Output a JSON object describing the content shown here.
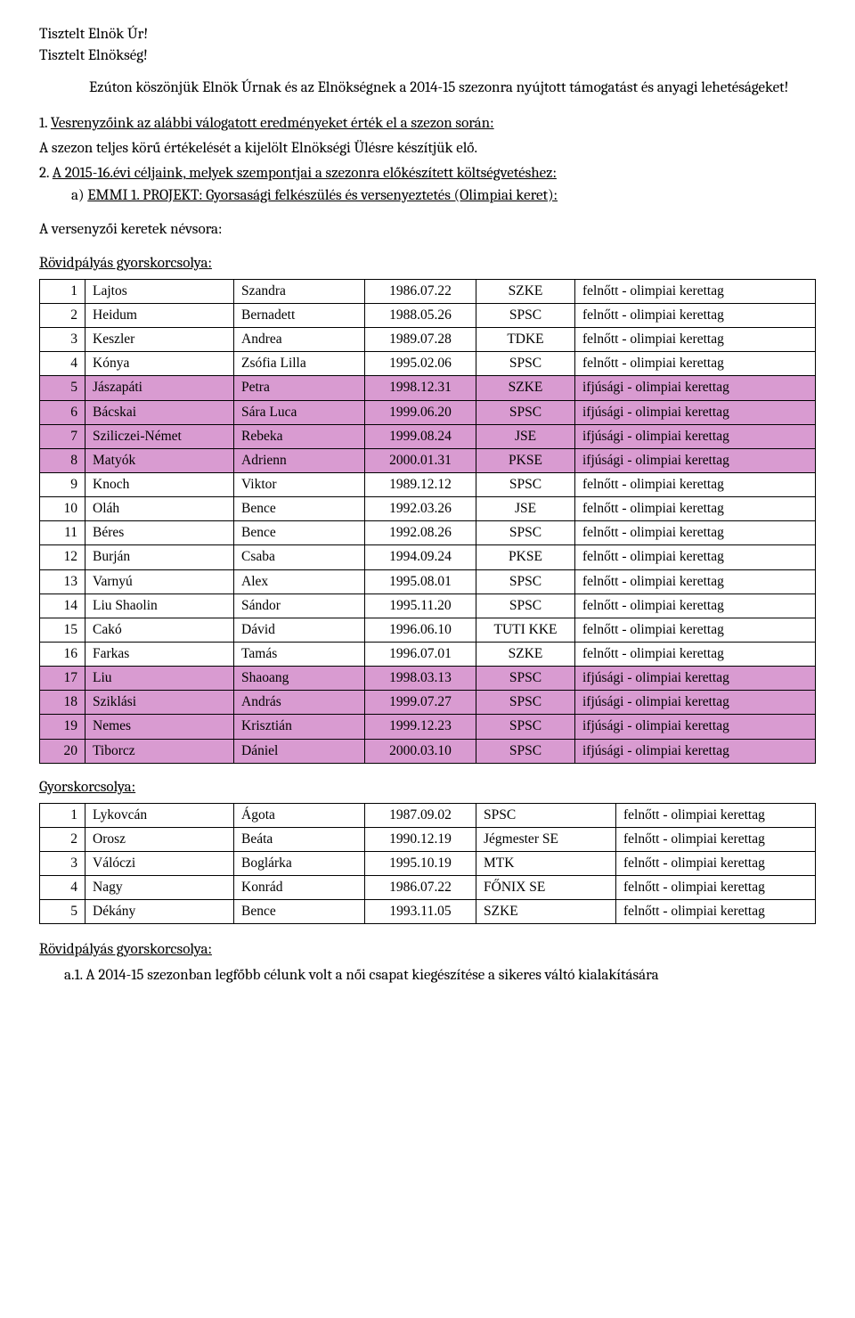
{
  "greeting": {
    "line1": "Tisztelt Elnök Úr!",
    "line2": "Tisztelt Elnökség!"
  },
  "intro": "Ezúton köszönjük Elnök Úrnak és az Elnökségnek a 2014-15 szezonra nyújtott támogatást és anyagi lehetéságeket!",
  "item1_num": "1.",
  "item1_text": "Vesrenyzőink az alábbi válogatott eredményeket érték el a szezon során:",
  "item1_sub": "A szezon teljes körű értékelését a kijelölt Elnökségi Ülésre készítjük elő.",
  "item2_num": "2.",
  "item2_text": "A 2015-16.évi céljaink, melyek szempontjai a szezonra előkészített költségvetéshez:",
  "item2a_label": "a)",
  "item2a_text": "EMMI 1. PROJEKT: Gyorsasági felkészülés és versenyeztetés (Olimpiai keret):",
  "roster_intro1": "A versenyzői keretek névsora:",
  "roster_heading1": "Rövidpályás gyorskorcsolya:",
  "table1_rows": [
    {
      "n": "1",
      "ln": "Lajtos",
      "fn": "Szandra",
      "d": "1986.07.22",
      "c": "SZKE",
      "cat": "felnőtt - olimpiai kerettag",
      "hi": false
    },
    {
      "n": "2",
      "ln": "Heidum",
      "fn": "Bernadett",
      "d": "1988.05.26",
      "c": "SPSC",
      "cat": "felnőtt - olimpiai kerettag",
      "hi": false
    },
    {
      "n": "3",
      "ln": "Keszler",
      "fn": "Andrea",
      "d": "1989.07.28",
      "c": "TDKE",
      "cat": "felnőtt - olimpiai kerettag",
      "hi": false
    },
    {
      "n": "4",
      "ln": "Kónya",
      "fn": "Zsófia Lilla",
      "d": "1995.02.06",
      "c": "SPSC",
      "cat": "felnőtt - olimpiai kerettag",
      "hi": false
    },
    {
      "n": "5",
      "ln": "Jászapáti",
      "fn": "Petra",
      "d": "1998.12.31",
      "c": "SZKE",
      "cat": "ifjúsági - olimpiai kerettag",
      "hi": true
    },
    {
      "n": "6",
      "ln": "Bácskai",
      "fn": "Sára Luca",
      "d": "1999.06.20",
      "c": "SPSC",
      "cat": "ifjúsági - olimpiai kerettag",
      "hi": true
    },
    {
      "n": "7",
      "ln": "Sziliczei-Német",
      "fn": "Rebeka",
      "d": "1999.08.24",
      "c": "JSE",
      "cat": "ifjúsági - olimpiai kerettag",
      "hi": true
    },
    {
      "n": "8",
      "ln": "Matyók",
      "fn": "Adrienn",
      "d": "2000.01.31",
      "c": "PKSE",
      "cat": "ifjúsági - olimpiai kerettag",
      "hi": true
    },
    {
      "n": "9",
      "ln": "Knoch",
      "fn": "Viktor",
      "d": "1989.12.12",
      "c": "SPSC",
      "cat": "felnőtt - olimpiai kerettag",
      "hi": false
    },
    {
      "n": "10",
      "ln": "Oláh",
      "fn": "Bence",
      "d": "1992.03.26",
      "c": "JSE",
      "cat": "felnőtt - olimpiai kerettag",
      "hi": false
    },
    {
      "n": "11",
      "ln": "Béres",
      "fn": "Bence",
      "d": "1992.08.26",
      "c": "SPSC",
      "cat": "felnőtt - olimpiai kerettag",
      "hi": false
    },
    {
      "n": "12",
      "ln": "Burján",
      "fn": "Csaba",
      "d": "1994.09.24",
      "c": "PKSE",
      "cat": "felnőtt - olimpiai kerettag",
      "hi": false
    },
    {
      "n": "13",
      "ln": "Varnyú",
      "fn": "Alex",
      "d": "1995.08.01",
      "c": "SPSC",
      "cat": "felnőtt - olimpiai kerettag",
      "hi": false
    },
    {
      "n": "14",
      "ln": "Liu Shaolin",
      "fn": "Sándor",
      "d": "1995.11.20",
      "c": "SPSC",
      "cat": "felnőtt - olimpiai kerettag",
      "hi": false
    },
    {
      "n": "15",
      "ln": "Cakó",
      "fn": "Dávid",
      "d": "1996.06.10",
      "c": "TUTI KKE",
      "cat": "felnőtt - olimpiai kerettag",
      "hi": false
    },
    {
      "n": "16",
      "ln": "Farkas",
      "fn": "Tamás",
      "d": "1996.07.01",
      "c": "SZKE",
      "cat": "felnőtt - olimpiai kerettag",
      "hi": false
    },
    {
      "n": "17",
      "ln": "Liu",
      "fn": "Shaoang",
      "d": "1998.03.13",
      "c": "SPSC",
      "cat": "ifjúsági - olimpiai kerettag",
      "hi": true
    },
    {
      "n": "18",
      "ln": "Sziklási",
      "fn": "András",
      "d": "1999.07.27",
      "c": "SPSC",
      "cat": "ifjúsági - olimpiai kerettag",
      "hi": true
    },
    {
      "n": "19",
      "ln": "Nemes",
      "fn": "Krisztián",
      "d": "1999.12.23",
      "c": "SPSC",
      "cat": "ifjúsági - olimpiai kerettag",
      "hi": true
    },
    {
      "n": "20",
      "ln": "Tiborcz",
      "fn": "Dániel",
      "d": "2000.03.10",
      "c": "SPSC",
      "cat": "ifjúsági - olimpiai kerettag",
      "hi": true
    }
  ],
  "roster_heading2": "Gyorskorcsolya:",
  "table2_rows": [
    {
      "n": "1",
      "ln": "Lykovcán",
      "fn": "Ágota",
      "d": "1987.09.02",
      "c": "SPSC",
      "cat": "felnőtt - olimpiai kerettag"
    },
    {
      "n": "2",
      "ln": "Orosz",
      "fn": "Beáta",
      "d": "1990.12.19",
      "c": "Jégmester SE",
      "cat": "felnőtt - olimpiai kerettag"
    },
    {
      "n": "3",
      "ln": "Válóczi",
      "fn": "Boglárka",
      "d": "1995.10.19",
      "c": "MTK",
      "cat": "felnőtt - olimpiai kerettag"
    },
    {
      "n": "4",
      "ln": "Nagy",
      "fn": "Konrád",
      "d": "1986.07.22",
      "c": "FŐNIX SE",
      "cat": "felnőtt - olimpiai kerettag"
    },
    {
      "n": "5",
      "ln": "Dékány",
      "fn": "Bence",
      "d": "1993.11.05",
      "c": "SZKE",
      "cat": "felnőtt - olimpiai kerettag"
    }
  ],
  "footer_heading": "Rövidpályás gyorskorcsolya:",
  "footer_item_num": "a.1.",
  "footer_item_text": "A 2014-15 szezonban legfőbb célunk volt a női csapat kiegészítése a sikeres váltó kialakítására"
}
